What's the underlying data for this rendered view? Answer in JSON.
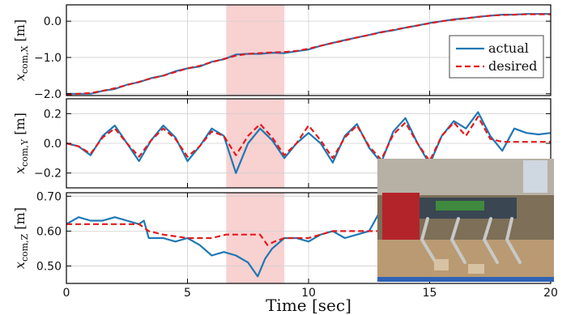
{
  "chart_data": {
    "type": "line",
    "x_axis": {
      "label": "Time [sec]",
      "range": [
        0,
        20
      ],
      "ticks": [
        0,
        5,
        10,
        15,
        20
      ],
      "tick_labels": [
        "0",
        "5",
        "10",
        "15",
        "20"
      ]
    },
    "highlight_band": {
      "x_start": 6.6,
      "x_end": 9.0,
      "color": "#f7c9c9"
    },
    "legend": {
      "placement": "right of top panel",
      "entries": [
        {
          "name": "actual",
          "color": "#1f77b4",
          "dash": "solid"
        },
        {
          "name": "desired",
          "color": "#e31a1c",
          "dash": "dashed"
        }
      ]
    },
    "colors": {
      "actual": "#1f77b4",
      "desired": "#e31a1c"
    },
    "panels": [
      {
        "ylabel_main": "x",
        "ylabel_sub": "com,X",
        "ylabel_unit": "[m]",
        "ylim": [
          -2.05,
          0.45
        ],
        "yticks": [
          0.0,
          -1.0,
          -2.0
        ],
        "ytick_labels": [
          "0.0",
          "−1.0",
          "−2.0"
        ],
        "series": [
          {
            "name": "actual",
            "x": [
              0,
              0.5,
              1,
              1.5,
              2,
              2.5,
              3,
              3.5,
              4,
              4.5,
              5,
              5.5,
              6,
              6.5,
              7,
              7.5,
              8,
              8.5,
              9,
              9.5,
              10,
              10.5,
              11,
              11.5,
              12,
              12.5,
              13,
              13.5,
              14,
              14.5,
              15,
              15.5,
              16,
              16.5,
              17,
              17.5,
              18,
              18.5,
              19,
              19.5,
              20
            ],
            "y": [
              -2.0,
              -2.0,
              -2.0,
              -1.92,
              -1.87,
              -1.75,
              -1.68,
              -1.57,
              -1.5,
              -1.38,
              -1.3,
              -1.25,
              -1.12,
              -1.05,
              -0.92,
              -0.9,
              -0.9,
              -0.87,
              -0.88,
              -0.83,
              -0.78,
              -0.68,
              -0.6,
              -0.52,
              -0.45,
              -0.38,
              -0.3,
              -0.25,
              -0.18,
              -0.12,
              -0.05,
              0.0,
              0.05,
              0.08,
              0.12,
              0.15,
              0.18,
              0.18,
              0.2,
              0.2,
              0.2
            ]
          },
          {
            "name": "desired",
            "x": [
              0,
              0.5,
              1,
              1.5,
              2,
              2.5,
              3,
              3.5,
              4,
              4.5,
              5,
              5.5,
              6,
              6.5,
              7,
              7.5,
              8,
              8.5,
              9,
              9.5,
              10,
              10.5,
              11,
              11.5,
              12,
              12.5,
              13,
              13.5,
              14,
              14.5,
              15,
              15.5,
              16,
              16.5,
              17,
              17.5,
              18,
              18.5,
              19,
              19.5,
              20
            ],
            "y": [
              -2.02,
              -2.0,
              -1.98,
              -1.92,
              -1.85,
              -1.76,
              -1.67,
              -1.58,
              -1.5,
              -1.4,
              -1.3,
              -1.23,
              -1.13,
              -1.04,
              -0.95,
              -0.9,
              -0.88,
              -0.86,
              -0.85,
              -0.82,
              -0.76,
              -0.68,
              -0.6,
              -0.53,
              -0.45,
              -0.38,
              -0.31,
              -0.24,
              -0.18,
              -0.12,
              -0.06,
              0.0,
              0.04,
              0.08,
              0.12,
              0.15,
              0.17,
              0.18,
              0.19,
              0.19,
              0.19
            ]
          }
        ]
      },
      {
        "ylabel_main": "x",
        "ylabel_sub": "com,Y",
        "ylabel_unit": "[m]",
        "ylim": [
          -0.3,
          0.3
        ],
        "yticks": [
          0.2,
          0.0,
          -0.2
        ],
        "ytick_labels": [
          "0.2",
          "0.0",
          "−0.2"
        ],
        "series": [
          {
            "name": "actual",
            "x": [
              0,
              0.5,
              1,
              1.5,
              2,
              2.5,
              3,
              3.5,
              4,
              4.5,
              5,
              5.5,
              6,
              6.5,
              7,
              7.5,
              8,
              8.5,
              9,
              9.5,
              10,
              10.5,
              11,
              11.5,
              12,
              12.5,
              13,
              13.5,
              14,
              14.5,
              15,
              15.5,
              16,
              16.5,
              17,
              17.5,
              18,
              18.5,
              19,
              19.5,
              20
            ],
            "y": [
              0.0,
              -0.02,
              -0.08,
              0.05,
              0.12,
              0.0,
              -0.12,
              0.02,
              0.12,
              0.04,
              -0.12,
              -0.02,
              0.1,
              0.05,
              -0.2,
              0.0,
              0.1,
              0.02,
              -0.1,
              0.0,
              0.07,
              0.0,
              -0.13,
              0.05,
              0.13,
              -0.03,
              -0.13,
              0.08,
              0.17,
              0.0,
              -0.14,
              0.05,
              0.15,
              0.1,
              0.21,
              0.05,
              -0.05,
              0.1,
              0.07,
              0.06,
              0.07
            ]
          },
          {
            "name": "desired",
            "x": [
              0,
              0.5,
              1,
              1.5,
              2,
              2.5,
              3,
              3.5,
              4,
              4.5,
              5,
              5.5,
              6,
              6.5,
              7,
              7.5,
              8,
              8.5,
              9,
              9.5,
              10,
              10.5,
              11,
              11.5,
              12,
              12.5,
              13,
              13.5,
              14,
              14.5,
              15,
              15.5,
              16,
              16.5,
              17,
              17.5,
              18,
              18.5,
              19,
              19.5,
              20
            ],
            "y": [
              0.0,
              -0.02,
              -0.07,
              0.04,
              0.1,
              0.0,
              -0.09,
              0.02,
              0.1,
              0.03,
              -0.09,
              -0.02,
              0.08,
              0.05,
              -0.08,
              0.05,
              0.13,
              0.04,
              -0.08,
              0.0,
              0.12,
              0.02,
              -0.1,
              0.04,
              0.12,
              -0.02,
              -0.11,
              0.06,
              0.14,
              0.0,
              -0.12,
              0.05,
              0.14,
              0.05,
              0.18,
              0.03,
              0.01,
              0.01,
              0.01,
              0.01,
              0.01
            ]
          }
        ]
      },
      {
        "ylabel_main": "x",
        "ylabel_sub": "com,Z",
        "ylabel_unit": "[m]",
        "ylim": [
          0.45,
          0.71
        ],
        "yticks": [
          0.7,
          0.6,
          0.5
        ],
        "ytick_labels": [
          "0.70",
          "0.60",
          "0.50"
        ],
        "series": [
          {
            "name": "actual",
            "x": [
              0,
              0.5,
              1,
              1.5,
              2,
              2.5,
              3,
              3.2,
              3.4,
              4,
              4.5,
              5,
              5.5,
              6,
              6.5,
              7,
              7.5,
              7.9,
              8.2,
              8.5,
              9,
              9.5,
              10,
              10.5,
              11,
              11.5,
              12,
              12.5,
              12.9,
              13
            ],
            "y": [
              0.62,
              0.64,
              0.63,
              0.63,
              0.64,
              0.63,
              0.62,
              0.63,
              0.58,
              0.58,
              0.57,
              0.58,
              0.56,
              0.53,
              0.54,
              0.53,
              0.51,
              0.47,
              0.52,
              0.55,
              0.58,
              0.58,
              0.57,
              0.59,
              0.6,
              0.58,
              0.59,
              0.6,
              0.65,
              0.63
            ]
          },
          {
            "name": "desired",
            "x": [
              0,
              1,
              2,
              3,
              3.4,
              4,
              5,
              6,
              6.6,
              7,
              7.5,
              8,
              8.3,
              8.6,
              9,
              9.5,
              10,
              10.5,
              11,
              11.5,
              12,
              12.5,
              13
            ],
            "y": [
              0.62,
              0.62,
              0.62,
              0.62,
              0.6,
              0.59,
              0.58,
              0.58,
              0.59,
              0.59,
              0.59,
              0.59,
              0.56,
              0.57,
              0.58,
              0.58,
              0.58,
              0.59,
              0.6,
              0.6,
              0.6,
              0.6,
              0.6
            ]
          }
        ]
      }
    ]
  }
}
